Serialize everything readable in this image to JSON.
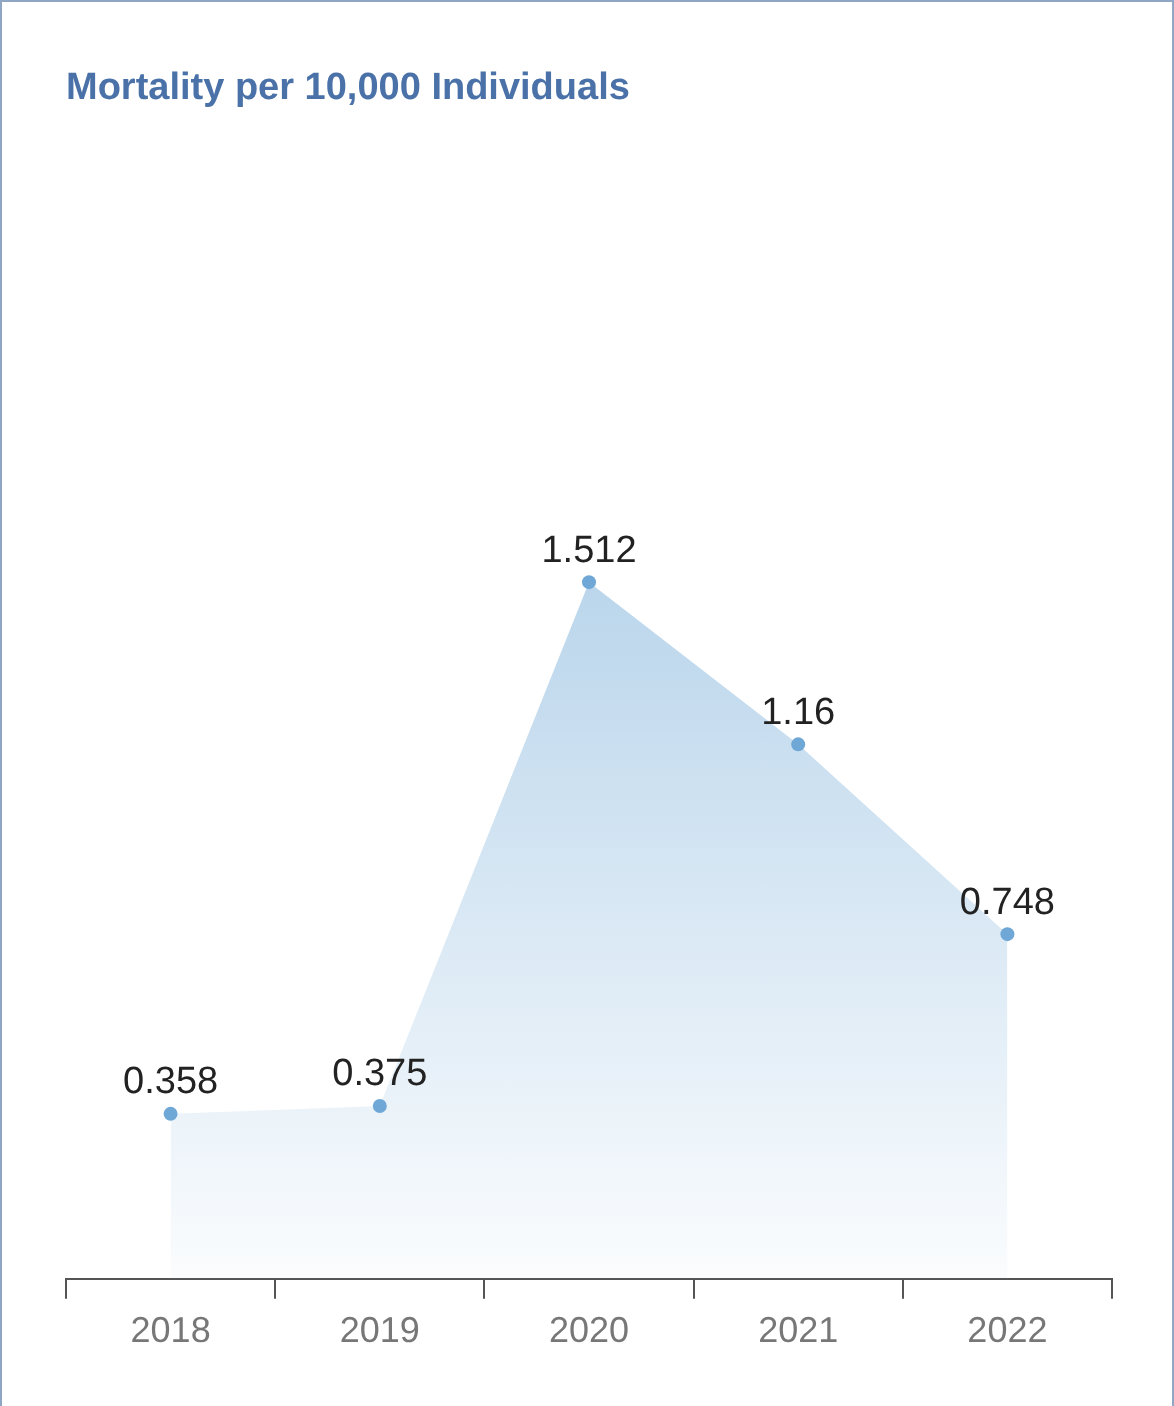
{
  "chart_data": {
    "type": "area",
    "title": "Mortality per 10,000 Individuals",
    "categories": [
      "2018",
      "2019",
      "2020",
      "2021",
      "2022"
    ],
    "values": [
      0.358,
      0.375,
      1.512,
      1.16,
      0.748
    ],
    "color": "#6fa8d6",
    "marker": "circle",
    "data_labels": true
  }
}
